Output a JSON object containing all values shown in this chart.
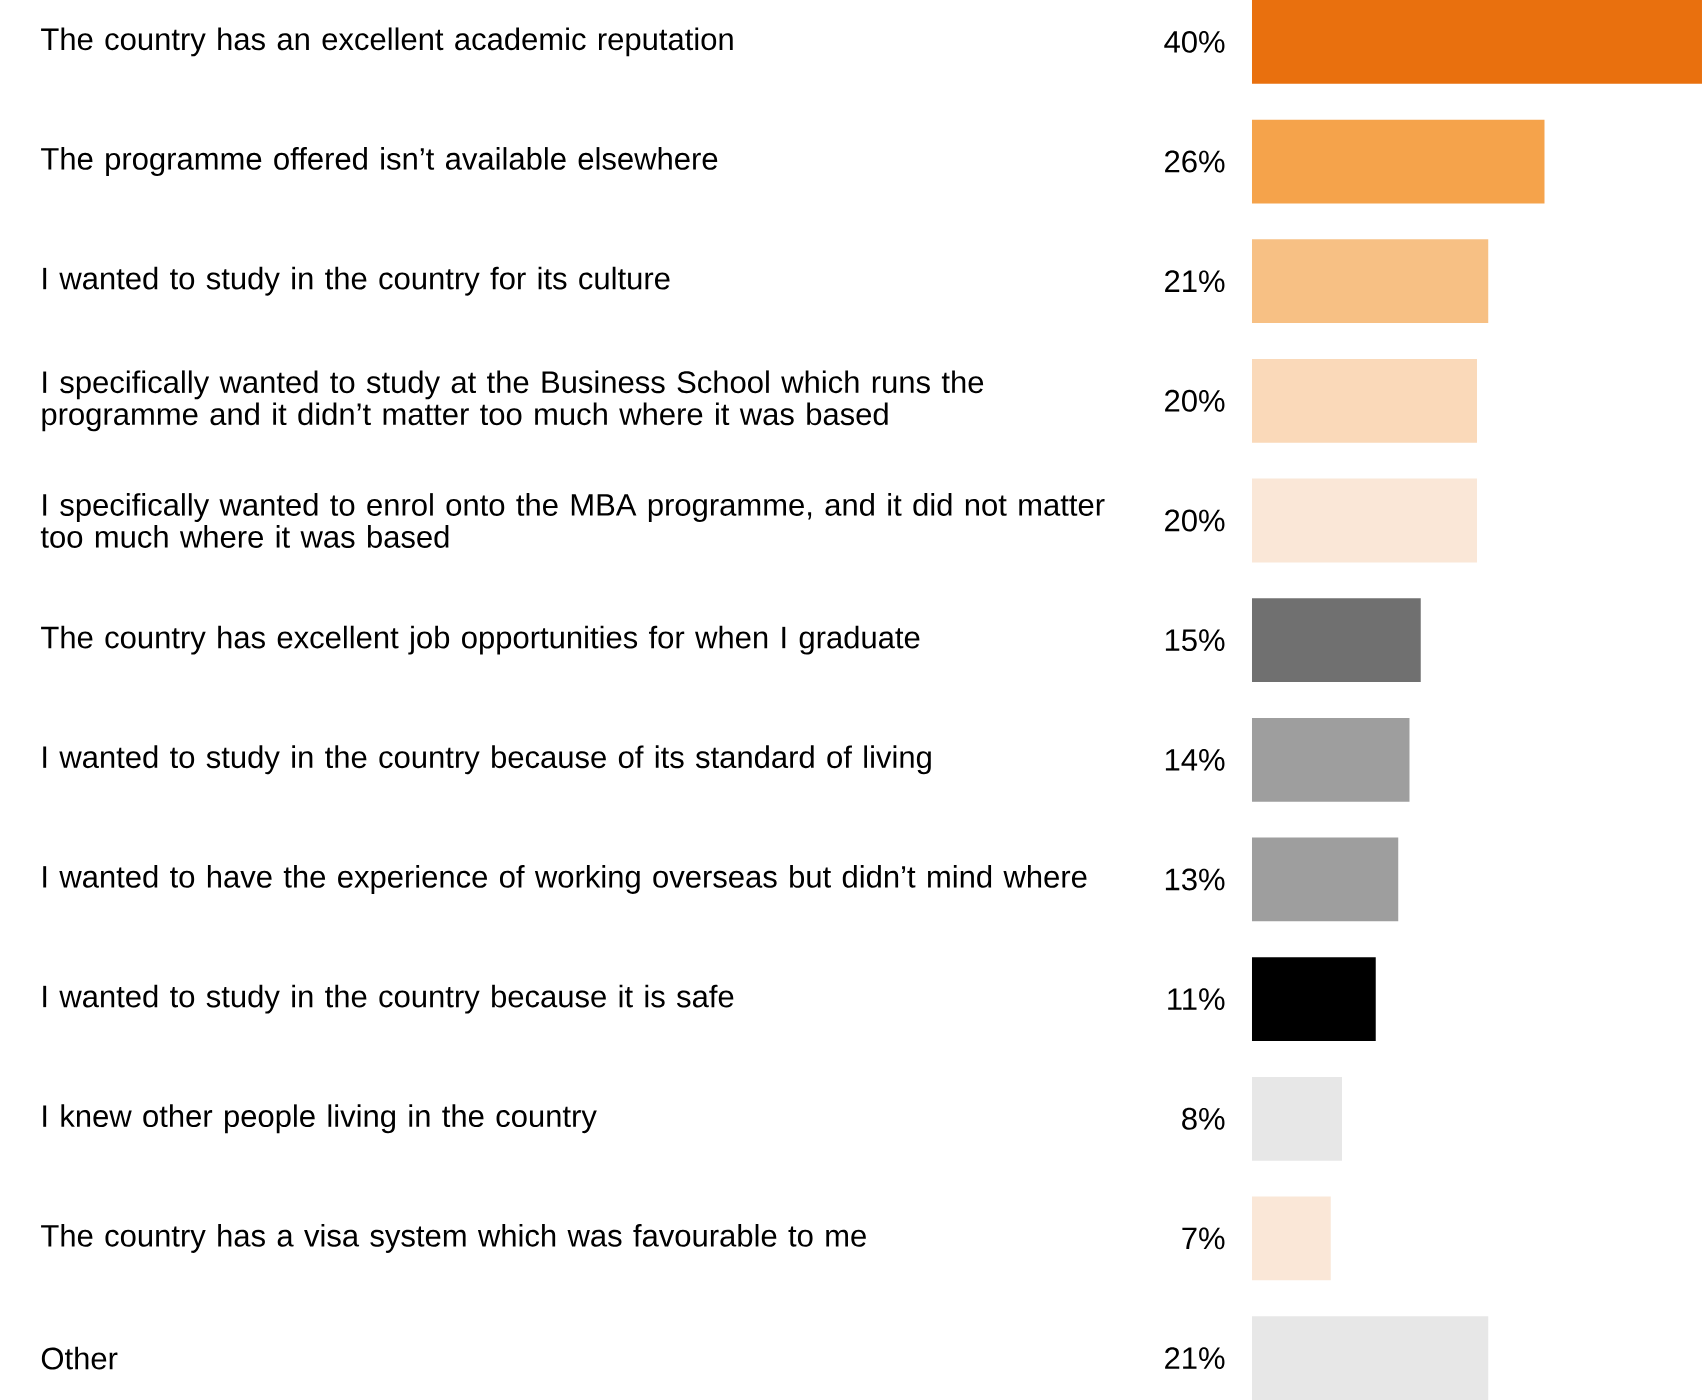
{
  "chart_data": {
    "type": "bar",
    "orientation": "horizontal",
    "categories": [
      "The country has an excellent academic reputation",
      "The programme offered isn’t available elsewhere",
      "I wanted to study in the country for its culture",
      "I specifically wanted to study at the Business School which runs the programme and it didn’t matter too much where it was based",
      "I specifically wanted to enrol onto the MBA programme, and it did not matter too much where it was based",
      "The country has excellent job opportunities for when I graduate",
      "I wanted to study in the country because of its standard of living",
      "I wanted to have the experience of working overseas but didn’t mind where",
      "I wanted to study in the country because it is safe",
      "I knew other people living in the country",
      "The country has a visa system which was favourable to me",
      "Other"
    ],
    "values": [
      40,
      26,
      21,
      20,
      20,
      15,
      14,
      13,
      11,
      8,
      7,
      21
    ],
    "value_labels": [
      "40%",
      "26%",
      "21%",
      "20%",
      "20%",
      "15%",
      "14%",
      "13%",
      "11%",
      "8%",
      "7%",
      "21%"
    ],
    "colors": [
      "#e9700e",
      "#f5a34b",
      "#f7c084",
      "#fad9b9",
      "#fae7d7",
      "#707070",
      "#9e9e9e",
      "#9e9e9e",
      "#000000",
      "#e7e7e7",
      "#fae7d7",
      "#e7e7e7"
    ]
  }
}
